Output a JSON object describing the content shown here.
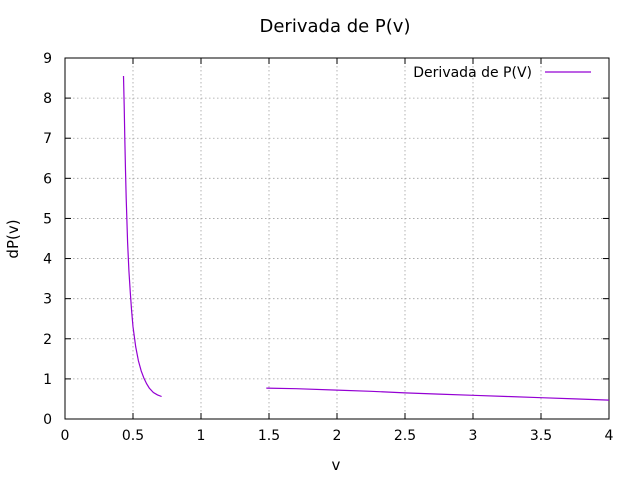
{
  "chart_data": {
    "type": "line",
    "title": "Derivada de P(v)",
    "xlabel": "v",
    "ylabel": "dP(v)",
    "xlim": [
      0,
      4
    ],
    "ylim": [
      0,
      9
    ],
    "xticks": [
      "0",
      "0.5",
      "1",
      "1.5",
      "2",
      "2.5",
      "3",
      "3.5",
      "4"
    ],
    "yticks": [
      "0",
      "1",
      "2",
      "3",
      "4",
      "5",
      "6",
      "7",
      "8",
      "9"
    ],
    "grid": true,
    "legend_position": "top-right",
    "series": [
      {
        "name": "Derivada de P(V)",
        "color": "#9400d3",
        "segments": [
          [
            [
              0.43,
              8.55
            ],
            [
              0.435,
              7.8
            ],
            [
              0.44,
              7.0
            ],
            [
              0.445,
              6.2
            ],
            [
              0.45,
              5.5
            ],
            [
              0.46,
              4.4
            ],
            [
              0.47,
              3.7
            ],
            [
              0.48,
              3.15
            ],
            [
              0.49,
              2.7
            ],
            [
              0.5,
              2.3
            ],
            [
              0.52,
              1.8
            ],
            [
              0.54,
              1.45
            ],
            [
              0.56,
              1.2
            ],
            [
              0.58,
              1.02
            ],
            [
              0.6,
              0.88
            ],
            [
              0.62,
              0.77
            ],
            [
              0.65,
              0.66
            ],
            [
              0.68,
              0.6
            ],
            [
              0.71,
              0.56
            ]
          ],
          [
            [
              1.48,
              0.77
            ],
            [
              1.7,
              0.755
            ],
            [
              2.0,
              0.72
            ],
            [
              2.25,
              0.69
            ],
            [
              2.5,
              0.65
            ],
            [
              2.75,
              0.62
            ],
            [
              3.0,
              0.59
            ],
            [
              3.25,
              0.56
            ],
            [
              3.5,
              0.53
            ],
            [
              3.75,
              0.5
            ],
            [
              4.0,
              0.47
            ]
          ]
        ]
      }
    ]
  }
}
